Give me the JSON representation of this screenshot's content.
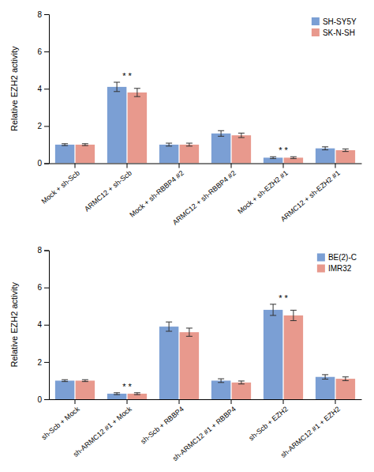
{
  "chart_data": [
    {
      "type": "bar",
      "ylabel": "Relative EZH2 activity",
      "categories": [
        "Mock + sh-Scb",
        "ARMC12 + sh-Scb",
        "Mock + sh-RBBP4 #2",
        "ARMC12 + sh-RBBP4 #2",
        "Mock + sh-EZH2 #1",
        "ARMC12 + sh-EZH2 #1"
      ],
      "series": [
        {
          "name": "SH-SY5Y",
          "color": "#7b9fd4",
          "values": [
            1.0,
            4.1,
            1.0,
            1.6,
            0.3,
            0.8
          ],
          "errors": [
            0.05,
            0.25,
            0.08,
            0.15,
            0.05,
            0.08
          ]
        },
        {
          "name": "SK-N-SH",
          "color": "#e8998d",
          "values": [
            1.0,
            3.8,
            1.0,
            1.5,
            0.3,
            0.7
          ],
          "errors": [
            0.05,
            0.22,
            0.08,
            0.12,
            0.05,
            0.07
          ]
        }
      ],
      "ylim": [
        0,
        8
      ],
      "yticks": [
        0,
        2,
        4,
        6,
        8
      ],
      "grid": false,
      "legend": "upper right",
      "annotations": [
        {
          "text": "* *",
          "x": "ARMC12 + sh-Scb"
        },
        {
          "text": "* *",
          "x": "Mock + sh-EZH2 #1"
        }
      ]
    },
    {
      "type": "bar",
      "ylabel": "Relative EZH2 activity",
      "categories": [
        "sh-Scb + Mock",
        "sh-ARMC12 #1 + Mock",
        "sh-Scb + RBBP4",
        "sh-ARMC12 #1 + RBBP4",
        "sh-Scb + EZH2",
        "sh-ARMC12 #1 + EZH2"
      ],
      "series": [
        {
          "name": "BE(2)-C",
          "color": "#7b9fd4",
          "values": [
            1.0,
            0.3,
            3.9,
            1.0,
            4.8,
            1.2
          ],
          "errors": [
            0.05,
            0.05,
            0.25,
            0.1,
            0.3,
            0.12
          ]
        },
        {
          "name": "IMR32",
          "color": "#e8998d",
          "values": [
            1.0,
            0.3,
            3.6,
            0.9,
            4.5,
            1.1
          ],
          "errors": [
            0.05,
            0.05,
            0.22,
            0.08,
            0.28,
            0.1
          ]
        }
      ],
      "ylim": [
        0,
        8
      ],
      "yticks": [
        0,
        2,
        4,
        6,
        8
      ],
      "grid": false,
      "legend": "upper right",
      "annotations": [
        {
          "text": "* *",
          "x": "sh-ARMC12 #1 + Mock"
        },
        {
          "text": "* *",
          "x": "sh-Scb + EZH2"
        }
      ]
    }
  ]
}
